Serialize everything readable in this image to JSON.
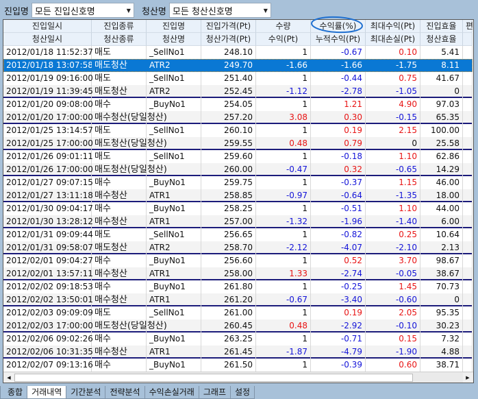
{
  "filters": {
    "entry_label": "진입명",
    "entry_value": "모든 진입신호명",
    "exit_label": "청산명",
    "exit_value": "모든 청산신호명"
  },
  "grid": {
    "headers_top": [
      "진입일시",
      "진입종류",
      "진입명",
      "진입가격(Pt)",
      "수량",
      "수익률(%)",
      "최대수익(Pt)",
      "진입효율",
      "편"
    ],
    "headers_bottom": [
      "청산일시",
      "청산종류",
      "청산명",
      "청산가격(Pt)",
      "수익(Pt)",
      "누적수익(Pt)",
      "최대손실(Pt)",
      "청산효율",
      ""
    ],
    "selected_row": 1,
    "rows": [
      {
        "cells": [
          "2012/01/18 11:52:37",
          "매도",
          "_SellNo1",
          "248.10",
          "1",
          "-0.67",
          "0.10",
          "5.41"
        ],
        "colors": [
          "k",
          "b",
          "r"
        ]
      },
      {
        "cells": [
          "2012/01/18 13:07:58",
          "매도청산",
          "ATR2",
          "249.70",
          "-1.66",
          "-1.66",
          "-1.75",
          "8.11"
        ],
        "colors": [
          "b",
          "b",
          "b"
        ]
      },
      {
        "cells": [
          "2012/01/19 09:16:00",
          "매도",
          "_SellNo1",
          "251.40",
          "1",
          "-0.44",
          "0.75",
          "41.67"
        ],
        "colors": [
          "k",
          "b",
          "r"
        ]
      },
      {
        "cells": [
          "2012/01/19 11:39:45",
          "매도청산",
          "ATR2",
          "252.45",
          "-1.12",
          "-2.78",
          "-1.05",
          "0"
        ],
        "colors": [
          "b",
          "b",
          "b"
        ]
      },
      {
        "cells": [
          "2012/01/20 09:08:00",
          "매수",
          "_BuyNo1",
          "254.05",
          "1",
          "1.21",
          "4.90",
          "97.03"
        ],
        "colors": [
          "k",
          "r",
          "r"
        ]
      },
      {
        "cells": [
          "2012/01/20 17:00:00",
          "매수청산(당일청산)",
          "",
          "257.20",
          "3.08",
          "0.30",
          "-0.15",
          "65.35"
        ],
        "colors": [
          "r",
          "r",
          "b"
        ]
      },
      {
        "cells": [
          "2012/01/25 13:14:57",
          "매도",
          "_SellNo1",
          "260.10",
          "1",
          "0.19",
          "2.15",
          "100.00"
        ],
        "colors": [
          "k",
          "r",
          "r"
        ]
      },
      {
        "cells": [
          "2012/01/25 17:00:00",
          "매도청산(당일청산)",
          "",
          "259.55",
          "0.48",
          "0.79",
          "0",
          "25.58"
        ],
        "colors": [
          "r",
          "r",
          "k"
        ]
      },
      {
        "cells": [
          "2012/01/26 09:01:11",
          "매도",
          "_SellNo1",
          "259.60",
          "1",
          "-0.18",
          "1.10",
          "62.86"
        ],
        "colors": [
          "k",
          "b",
          "r"
        ]
      },
      {
        "cells": [
          "2012/01/26 17:00:00",
          "매도청산(당일청산)",
          "",
          "260.00",
          "-0.47",
          "0.32",
          "-0.65",
          "14.29"
        ],
        "colors": [
          "b",
          "r",
          "b"
        ]
      },
      {
        "cells": [
          "2012/01/27 09:07:15",
          "매수",
          "_BuyNo1",
          "259.75",
          "1",
          "-0.37",
          "1.15",
          "46.00"
        ],
        "colors": [
          "k",
          "b",
          "r"
        ]
      },
      {
        "cells": [
          "2012/01/27 13:11:18",
          "매수청산",
          "ATR1",
          "258.85",
          "-0.97",
          "-0.64",
          "-1.35",
          "18.00"
        ],
        "colors": [
          "b",
          "b",
          "b"
        ]
      },
      {
        "cells": [
          "2012/01/30 09:04:17",
          "매수",
          "_BuyNo1",
          "258.25",
          "1",
          "-0.51",
          "1.10",
          "44.00"
        ],
        "colors": [
          "k",
          "b",
          "r"
        ]
      },
      {
        "cells": [
          "2012/01/30 13:28:12",
          "매수청산",
          "ATR1",
          "257.00",
          "-1.32",
          "-1.96",
          "-1.40",
          "6.00"
        ],
        "colors": [
          "b",
          "b",
          "b"
        ]
      },
      {
        "cells": [
          "2012/01/31 09:09:44",
          "매도",
          "_SellNo1",
          "256.65",
          "1",
          "-0.82",
          "0.25",
          "10.64"
        ],
        "colors": [
          "k",
          "b",
          "r"
        ]
      },
      {
        "cells": [
          "2012/01/31 09:58:07",
          "매도청산",
          "ATR2",
          "258.70",
          "-2.12",
          "-4.07",
          "-2.10",
          "2.13"
        ],
        "colors": [
          "b",
          "b",
          "b"
        ]
      },
      {
        "cells": [
          "2012/02/01 09:04:27",
          "매수",
          "_BuyNo1",
          "256.60",
          "1",
          "0.52",
          "3.70",
          "98.67"
        ],
        "colors": [
          "k",
          "r",
          "r"
        ]
      },
      {
        "cells": [
          "2012/02/01 13:57:11",
          "매수청산",
          "ATR1",
          "258.00",
          "1.33",
          "-2.74",
          "-0.05",
          "38.67"
        ],
        "colors": [
          "r",
          "b",
          "b"
        ]
      },
      {
        "cells": [
          "2012/02/02 09:18:53",
          "매수",
          "_BuyNo1",
          "261.80",
          "1",
          "-0.25",
          "1.45",
          "70.73"
        ],
        "colors": [
          "k",
          "b",
          "r"
        ]
      },
      {
        "cells": [
          "2012/02/02 13:50:01",
          "매수청산",
          "ATR1",
          "261.20",
          "-0.67",
          "-3.40",
          "-0.60",
          "0"
        ],
        "colors": [
          "b",
          "b",
          "b"
        ]
      },
      {
        "cells": [
          "2012/02/03 09:09:09",
          "매도",
          "_SellNo1",
          "261.00",
          "1",
          "0.19",
          "2.05",
          "95.35"
        ],
        "colors": [
          "k",
          "r",
          "r"
        ]
      },
      {
        "cells": [
          "2012/02/03 17:00:00",
          "매도청산(당일청산)",
          "",
          "260.45",
          "0.48",
          "-2.92",
          "-0.10",
          "30.23"
        ],
        "colors": [
          "r",
          "b",
          "b"
        ]
      },
      {
        "cells": [
          "2012/02/06 09:02:26",
          "매수",
          "_BuyNo1",
          "263.25",
          "1",
          "-0.71",
          "0.15",
          "7.32"
        ],
        "colors": [
          "k",
          "b",
          "r"
        ]
      },
      {
        "cells": [
          "2012/02/06 10:31:35",
          "매수청산",
          "ATR1",
          "261.45",
          "-1.87",
          "-4.79",
          "-1.90",
          "4.88"
        ],
        "colors": [
          "b",
          "b",
          "b"
        ]
      },
      {
        "cells": [
          "2012/02/07 09:13:16",
          "매수",
          "_BuyNo1",
          "261.50",
          "1",
          "-0.39",
          "0.60",
          "38.71"
        ],
        "colors": [
          "k",
          "b",
          "r"
        ]
      }
    ]
  },
  "annotation_color": "#1e6fd0",
  "tabs": [
    "종합",
    "거래내역",
    "기간분석",
    "전략분석",
    "수익손실거래",
    "그래프",
    "설정"
  ],
  "active_tab": 1
}
